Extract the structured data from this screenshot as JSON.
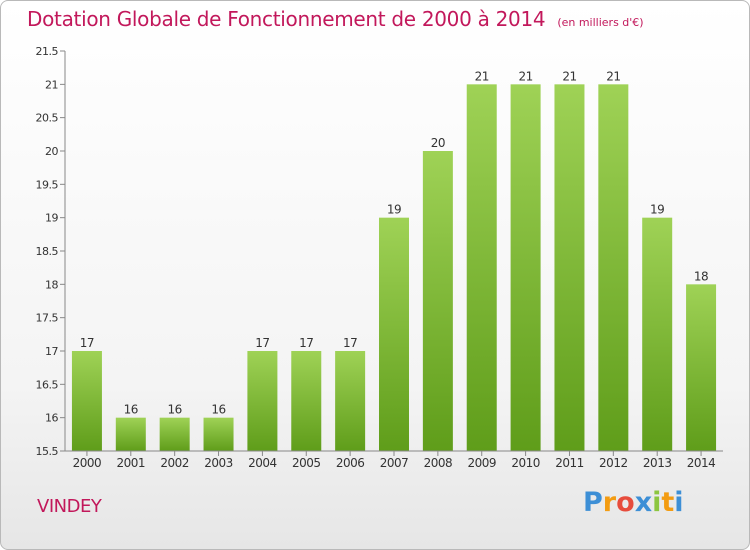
{
  "title": "Dotation Globale de Fonctionnement de 2000 à 2014",
  "unit_note": "(en milliers d'€)",
  "place": "VINDEY",
  "logo": {
    "text": "Proxiti",
    "colors": [
      "#3d8fd6",
      "#f39c12",
      "#e74c3c",
      "#3d8fd6",
      "#8cc63f",
      "#f39c12",
      "#3d8fd6"
    ]
  },
  "colors": {
    "title": "#c2185b",
    "bar_top": "#9fd256",
    "bar_bottom": "#5f9d1a",
    "axis": "#888888",
    "text": "#333333"
  },
  "chart_data": {
    "type": "bar",
    "title": "Dotation Globale de Fonctionnement de 2000 à 2014",
    "categories": [
      "2000",
      "2001",
      "2002",
      "2003",
      "2004",
      "2005",
      "2006",
      "2007",
      "2008",
      "2009",
      "2010",
      "2011",
      "2012",
      "2013",
      "2014"
    ],
    "values": [
      17,
      16,
      16,
      16,
      17,
      17,
      17,
      19,
      20,
      21,
      21,
      21,
      21,
      19,
      18
    ],
    "data_labels": [
      "17",
      "16",
      "16",
      "16",
      "17",
      "17",
      "17",
      "19",
      "20",
      "21",
      "21",
      "21",
      "21",
      "19",
      "18"
    ],
    "ylim": [
      15.5,
      21.5
    ],
    "yticks": [
      15.5,
      16,
      16.5,
      17,
      17.5,
      18,
      18.5,
      19,
      19.5,
      20,
      20.5,
      21,
      21.5
    ],
    "ytick_labels": [
      "15.5",
      "16",
      "16.5",
      "17",
      "17.5",
      "18",
      "18.5",
      "19",
      "19.5",
      "20",
      "20.5",
      "21",
      "21.5"
    ],
    "grid": false,
    "legend": "none"
  }
}
